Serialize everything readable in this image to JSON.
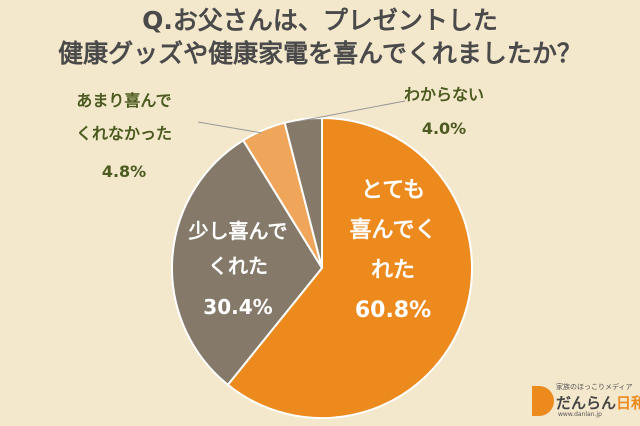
{
  "chart_data": {
    "type": "pie",
    "title_lines": [
      "Q.お父さんは、プレゼントした",
      "健康グッズや健康家電を喜んでくれましたか？"
    ],
    "slices": [
      {
        "label_lines": [
          "とても",
          "喜んでく",
          "れた"
        ],
        "value": 60.8,
        "value_label": "60.8%",
        "color": "#ec8a1e"
      },
      {
        "label_lines": [
          "少し喜んで",
          "くれた"
        ],
        "value": 30.4,
        "value_label": "30.4%",
        "color": "#857a69"
      },
      {
        "label_lines": [
          "あまり喜んで",
          "くれなかった"
        ],
        "value": 4.8,
        "value_label": "4.8%",
        "color": "#f0a65a"
      },
      {
        "label_lines": [
          "わからない"
        ],
        "value": 4.0,
        "value_label": "4.0%",
        "color": "#857a69"
      }
    ]
  },
  "logo": {
    "tagline": "家族のほっこりメディア",
    "name_part1": "だんらん",
    "name_part2": "日和",
    "url": "www.danlan.jp"
  }
}
